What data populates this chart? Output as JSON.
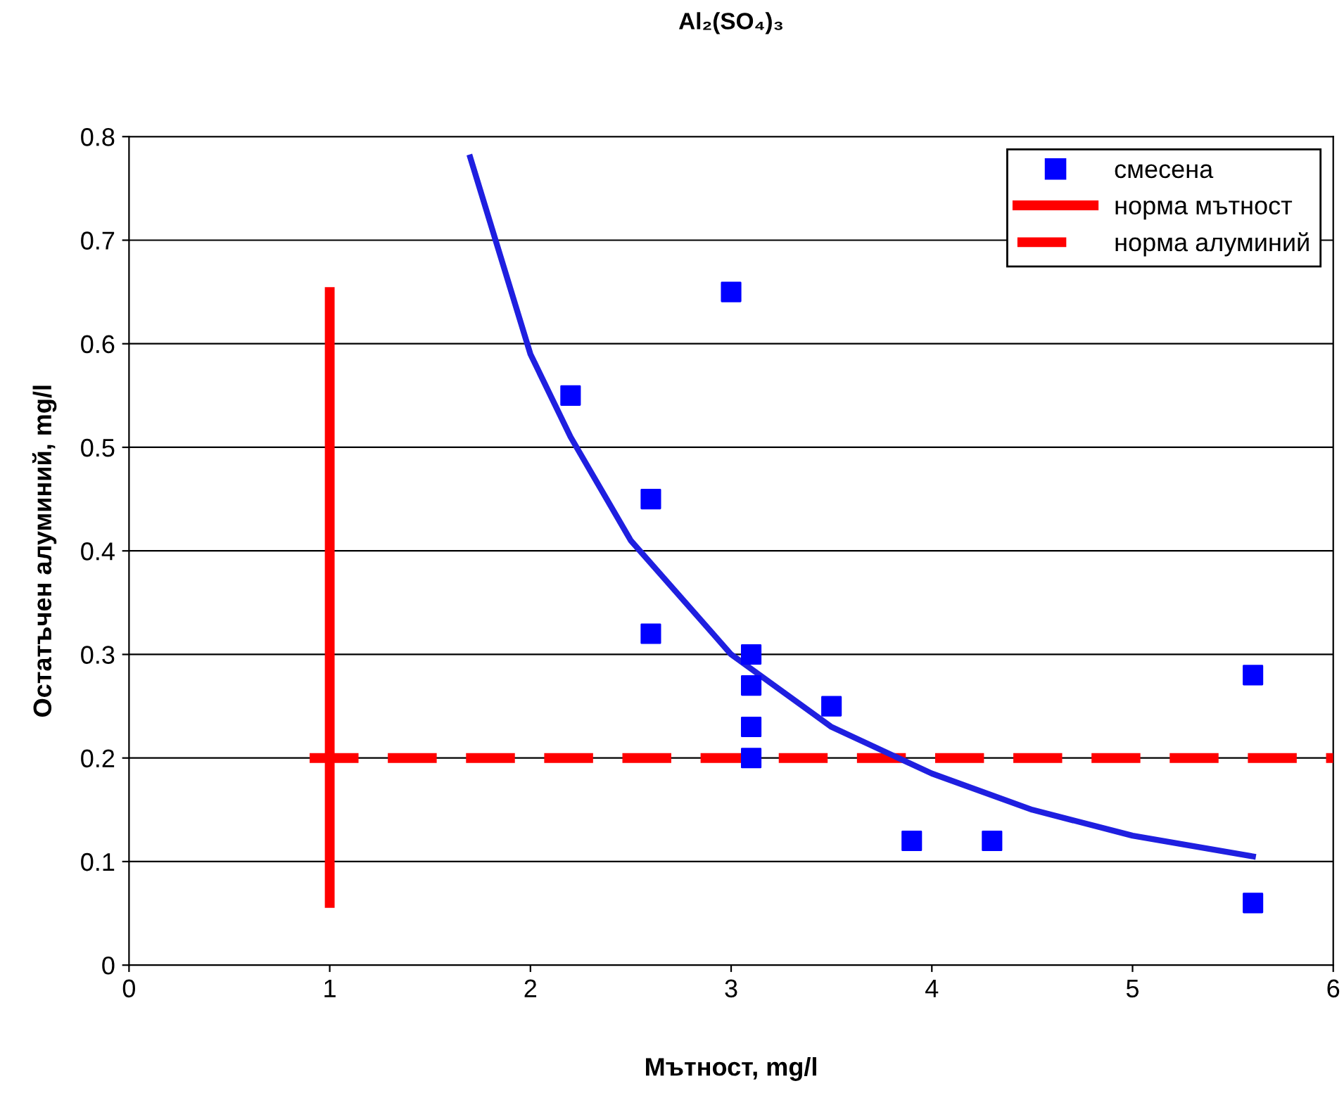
{
  "chart_data": {
    "type": "scatter",
    "title": "Al₂(SO₄)₃",
    "xlabel": "Мътност, mg/l",
    "ylabel": "Остатъчен алуминий, mg/l",
    "xlim": [
      0,
      6
    ],
    "xticks": [
      0,
      1,
      2,
      3,
      4,
      5,
      6
    ],
    "ylim": [
      0,
      0.8
    ],
    "yticks": [
      0,
      0.1,
      0.2,
      0.3,
      0.4,
      0.5,
      0.6,
      0.7,
      0.8
    ],
    "grid": "y",
    "legend": "top right",
    "series": [
      {
        "name": "смесена",
        "marker": "square",
        "color": "#0000ff",
        "x": [
          2.2,
          2.6,
          2.6,
          3.0,
          3.1,
          3.1,
          3.1,
          3.1,
          3.5,
          3.9,
          4.3,
          5.6,
          5.6
        ],
        "values": [
          0.55,
          0.45,
          0.32,
          0.65,
          0.3,
          0.27,
          0.23,
          0.2,
          0.25,
          0.12,
          0.12,
          0.28,
          0.06
        ]
      },
      {
        "name": "норма мътност",
        "type": "line",
        "line_style": "solid",
        "color": "#ff0000",
        "x": [
          1,
          1
        ],
        "values": [
          0.06,
          0.65
        ]
      },
      {
        "name": "норма алуминий",
        "type": "line",
        "line_style": "dashed",
        "color": "#ff0000",
        "x": [
          0.9,
          6
        ],
        "values": [
          0.2,
          0.2
        ]
      },
      {
        "type": "line",
        "line_style": "solid",
        "color": "#1f1fe0",
        "x": [
          1.7,
          2.0,
          2.2,
          2.5,
          3.0,
          3.5,
          4.0,
          4.5,
          5.0,
          5.6
        ],
        "values": [
          0.78,
          0.59,
          0.51,
          0.41,
          0.3,
          0.23,
          0.185,
          0.15,
          0.125,
          0.105
        ]
      }
    ]
  }
}
